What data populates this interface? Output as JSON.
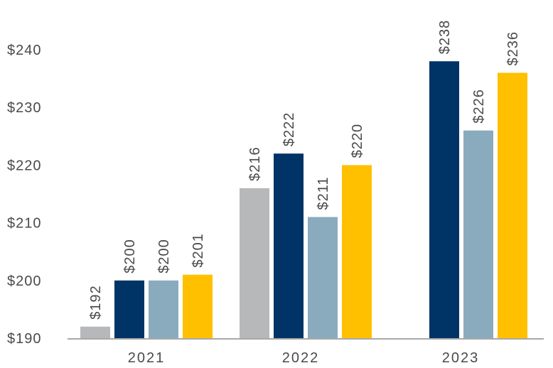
{
  "chart_data": {
    "type": "bar",
    "title": "",
    "xlabel": "",
    "ylabel": "",
    "categories": [
      "2021",
      "2022",
      "2023"
    ],
    "ylim": [
      190,
      240
    ],
    "yticks": [
      190,
      200,
      210,
      220,
      230,
      240
    ],
    "ytick_labels": [
      "$190",
      "$200",
      "$210",
      "$220",
      "$230",
      "$240"
    ],
    "grid": false,
    "legend": "none",
    "series": [
      {
        "color": "#b6b8ba",
        "values": [
          192,
          216,
          null
        ],
        "labels": [
          "$192",
          "$216",
          ""
        ]
      },
      {
        "color": "#003366",
        "values": [
          200,
          222,
          238
        ],
        "labels": [
          "$200",
          "$222",
          "$238"
        ]
      },
      {
        "color": "#8aabbd",
        "values": [
          200,
          211,
          226
        ],
        "labels": [
          "$200",
          "$211",
          "$226"
        ]
      },
      {
        "color": "#ffc000",
        "values": [
          201,
          220,
          236
        ],
        "labels": [
          "$201",
          "$220",
          "$236"
        ]
      }
    ]
  }
}
